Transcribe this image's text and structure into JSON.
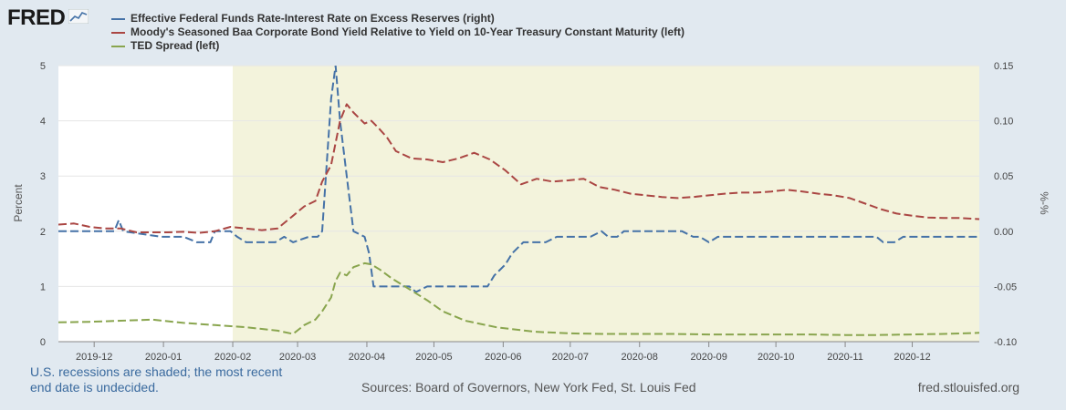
{
  "brand": "FRED",
  "colors": {
    "background": "#e1e9f0",
    "recession": "#f3f3dc",
    "series_iorer": "#4572a7",
    "series_baa": "#aa4643",
    "series_ted": "#89a54e"
  },
  "legend": [
    {
      "label": "Effective Federal Funds Rate-Interest Rate on Excess Reserves (right)",
      "color": "#4572a7"
    },
    {
      "label": "Moody's Seasoned Baa Corporate Bond Yield Relative to Yield on 10-Year Treasury Constant Maturity (left)",
      "color": "#aa4643"
    },
    {
      "label": "TED Spread (left)",
      "color": "#89a54e"
    }
  ],
  "footer": {
    "note_line1": "U.S. recessions are shaded; the most recent",
    "note_line2": "end date is undecided.",
    "sources": "Sources: Board of Governors, New York Fed, St. Louis Fed",
    "site": "fred.stlouisfed.org"
  },
  "chart_data": {
    "type": "line",
    "ylabel_left": "Percent",
    "ylabel_right": "%-%",
    "ylim_left": [
      0,
      5
    ],
    "ylim_right": [
      -0.1,
      0.15
    ],
    "yticks_left": [
      "0",
      "1",
      "2",
      "3",
      "4",
      "5"
    ],
    "yticks_right": [
      "-0.10",
      "-0.05",
      "0.00",
      "0.05",
      "0.10",
      "0.15"
    ],
    "xlim": [
      "2019-11-15",
      "2020-12-31"
    ],
    "xticks": [
      {
        "label": "2019-12",
        "date": "2019-12-01"
      },
      {
        "label": "2020-01",
        "date": "2020-01-01"
      },
      {
        "label": "2020-02",
        "date": "2020-02-01"
      },
      {
        "label": "2020-03",
        "date": "2020-03-01"
      },
      {
        "label": "2020-04",
        "date": "2020-04-01"
      },
      {
        "label": "2020-05",
        "date": "2020-05-01"
      },
      {
        "label": "2020-06",
        "date": "2020-06-01"
      },
      {
        "label": "2020-07",
        "date": "2020-07-01"
      },
      {
        "label": "2020-08",
        "date": "2020-08-01"
      },
      {
        "label": "2020-09",
        "date": "2020-09-01"
      },
      {
        "label": "2020-10",
        "date": "2020-10-01"
      },
      {
        "label": "2020-11",
        "date": "2020-11-01"
      },
      {
        "label": "2020-12",
        "date": "2020-12-01"
      }
    ],
    "recession": {
      "start": "2020-02-01",
      "end": "2020-12-31"
    },
    "grid": true,
    "series": [
      {
        "name": "Effective Federal Funds Rate-Interest Rate on Excess Reserves (right)",
        "axis": "right",
        "color": "#4572a7",
        "points": [
          [
            "2019-11-15",
            0.0
          ],
          [
            "2019-12-10",
            0.0
          ],
          [
            "2019-12-12",
            0.01
          ],
          [
            "2019-12-14",
            0.0
          ],
          [
            "2019-12-31",
            -0.005
          ],
          [
            "2020-01-10",
            -0.005
          ],
          [
            "2020-01-16",
            -0.01
          ],
          [
            "2020-01-22",
            -0.01
          ],
          [
            "2020-01-24",
            0.0
          ],
          [
            "2020-01-31",
            0.0
          ],
          [
            "2020-02-03",
            -0.005
          ],
          [
            "2020-02-07",
            -0.01
          ],
          [
            "2020-02-14",
            -0.01
          ],
          [
            "2020-02-20",
            -0.01
          ],
          [
            "2020-02-24",
            -0.005
          ],
          [
            "2020-02-28",
            -0.01
          ],
          [
            "2020-03-06",
            -0.005
          ],
          [
            "2020-03-10",
            -0.005
          ],
          [
            "2020-03-12",
            0.0
          ],
          [
            "2020-03-16",
            0.12
          ],
          [
            "2020-03-18",
            0.15
          ],
          [
            "2020-03-20",
            0.1
          ],
          [
            "2020-03-23",
            0.05
          ],
          [
            "2020-03-26",
            0.0
          ],
          [
            "2020-03-31",
            -0.005
          ],
          [
            "2020-04-02",
            -0.02
          ],
          [
            "2020-04-04",
            -0.05
          ],
          [
            "2020-04-14",
            -0.05
          ],
          [
            "2020-04-20",
            -0.05
          ],
          [
            "2020-04-23",
            -0.055
          ],
          [
            "2020-04-28",
            -0.05
          ],
          [
            "2020-05-10",
            -0.05
          ],
          [
            "2020-05-25",
            -0.05
          ],
          [
            "2020-05-28",
            -0.04
          ],
          [
            "2020-06-02",
            -0.03
          ],
          [
            "2020-06-05",
            -0.02
          ],
          [
            "2020-06-10",
            -0.01
          ],
          [
            "2020-06-20",
            -0.01
          ],
          [
            "2020-06-25",
            -0.005
          ],
          [
            "2020-07-05",
            -0.005
          ],
          [
            "2020-07-10",
            -0.005
          ],
          [
            "2020-07-15",
            0.0
          ],
          [
            "2020-07-18",
            -0.005
          ],
          [
            "2020-07-22",
            -0.005
          ],
          [
            "2020-07-25",
            0.0
          ],
          [
            "2020-08-20",
            0.0
          ],
          [
            "2020-08-25",
            -0.005
          ],
          [
            "2020-08-28",
            -0.005
          ],
          [
            "2020-09-01",
            -0.01
          ],
          [
            "2020-09-05",
            -0.005
          ],
          [
            "2020-09-30",
            -0.005
          ],
          [
            "2020-10-31",
            -0.005
          ],
          [
            "2020-11-15",
            -0.005
          ],
          [
            "2020-11-18",
            -0.01
          ],
          [
            "2020-11-23",
            -0.01
          ],
          [
            "2020-11-27",
            -0.005
          ],
          [
            "2020-12-31",
            -0.005
          ]
        ]
      },
      {
        "name": "Moody's Seasoned Baa Corporate Bond Yield Relative to Yield on 10-Year Treasury Constant Maturity (left)",
        "axis": "left",
        "color": "#aa4643",
        "points": [
          [
            "2019-11-15",
            2.12
          ],
          [
            "2019-11-22",
            2.14
          ],
          [
            "2019-11-29",
            2.08
          ],
          [
            "2019-12-06",
            2.05
          ],
          [
            "2019-12-13",
            2.05
          ],
          [
            "2019-12-20",
            1.98
          ],
          [
            "2019-12-27",
            1.98
          ],
          [
            "2020-01-03",
            1.98
          ],
          [
            "2020-01-10",
            1.99
          ],
          [
            "2020-01-17",
            1.97
          ],
          [
            "2020-01-24",
            2.0
          ],
          [
            "2020-01-31",
            2.08
          ],
          [
            "2020-02-07",
            2.05
          ],
          [
            "2020-02-14",
            2.02
          ],
          [
            "2020-02-21",
            2.05
          ],
          [
            "2020-02-28",
            2.28
          ],
          [
            "2020-03-04",
            2.45
          ],
          [
            "2020-03-09",
            2.55
          ],
          [
            "2020-03-12",
            2.9
          ],
          [
            "2020-03-16",
            3.2
          ],
          [
            "2020-03-18",
            3.6
          ],
          [
            "2020-03-20",
            4.0
          ],
          [
            "2020-03-23",
            4.3
          ],
          [
            "2020-03-26",
            4.15
          ],
          [
            "2020-03-31",
            3.95
          ],
          [
            "2020-04-03",
            4.0
          ],
          [
            "2020-04-06",
            3.88
          ],
          [
            "2020-04-10",
            3.7
          ],
          [
            "2020-04-14",
            3.45
          ],
          [
            "2020-04-21",
            3.32
          ],
          [
            "2020-04-28",
            3.3
          ],
          [
            "2020-05-05",
            3.25
          ],
          [
            "2020-05-12",
            3.32
          ],
          [
            "2020-05-19",
            3.42
          ],
          [
            "2020-05-26",
            3.3
          ],
          [
            "2020-06-02",
            3.1
          ],
          [
            "2020-06-09",
            2.85
          ],
          [
            "2020-06-16",
            2.95
          ],
          [
            "2020-06-23",
            2.9
          ],
          [
            "2020-06-30",
            2.92
          ],
          [
            "2020-07-07",
            2.95
          ],
          [
            "2020-07-14",
            2.8
          ],
          [
            "2020-07-21",
            2.75
          ],
          [
            "2020-07-28",
            2.68
          ],
          [
            "2020-08-04",
            2.65
          ],
          [
            "2020-08-11",
            2.62
          ],
          [
            "2020-08-18",
            2.6
          ],
          [
            "2020-08-25",
            2.62
          ],
          [
            "2020-09-01",
            2.65
          ],
          [
            "2020-09-08",
            2.68
          ],
          [
            "2020-09-15",
            2.7
          ],
          [
            "2020-09-22",
            2.7
          ],
          [
            "2020-09-29",
            2.72
          ],
          [
            "2020-10-06",
            2.75
          ],
          [
            "2020-10-13",
            2.72
          ],
          [
            "2020-10-20",
            2.68
          ],
          [
            "2020-10-27",
            2.65
          ],
          [
            "2020-11-03",
            2.6
          ],
          [
            "2020-11-10",
            2.5
          ],
          [
            "2020-11-17",
            2.4
          ],
          [
            "2020-11-24",
            2.32
          ],
          [
            "2020-12-01",
            2.28
          ],
          [
            "2020-12-08",
            2.25
          ],
          [
            "2020-12-15",
            2.24
          ],
          [
            "2020-12-22",
            2.24
          ],
          [
            "2020-12-31",
            2.22
          ]
        ]
      },
      {
        "name": "TED Spread (left)",
        "axis": "left",
        "color": "#89a54e",
        "points": [
          [
            "2019-11-15",
            0.35
          ],
          [
            "2019-11-29",
            0.36
          ],
          [
            "2019-12-13",
            0.38
          ],
          [
            "2019-12-27",
            0.4
          ],
          [
            "2020-01-10",
            0.34
          ],
          [
            "2020-01-24",
            0.3
          ],
          [
            "2020-02-07",
            0.26
          ],
          [
            "2020-02-21",
            0.2
          ],
          [
            "2020-02-28",
            0.14
          ],
          [
            "2020-03-04",
            0.3
          ],
          [
            "2020-03-09",
            0.4
          ],
          [
            "2020-03-12",
            0.55
          ],
          [
            "2020-03-16",
            0.8
          ],
          [
            "2020-03-18",
            1.1
          ],
          [
            "2020-03-20",
            1.25
          ],
          [
            "2020-03-23",
            1.2
          ],
          [
            "2020-03-26",
            1.35
          ],
          [
            "2020-03-31",
            1.42
          ],
          [
            "2020-04-03",
            1.4
          ],
          [
            "2020-04-07",
            1.3
          ],
          [
            "2020-04-12",
            1.15
          ],
          [
            "2020-04-20",
            0.95
          ],
          [
            "2020-04-28",
            0.75
          ],
          [
            "2020-05-05",
            0.55
          ],
          [
            "2020-05-15",
            0.38
          ],
          [
            "2020-05-29",
            0.26
          ],
          [
            "2020-06-15",
            0.18
          ],
          [
            "2020-07-01",
            0.15
          ],
          [
            "2020-07-15",
            0.14
          ],
          [
            "2020-08-01",
            0.14
          ],
          [
            "2020-08-15",
            0.14
          ],
          [
            "2020-09-01",
            0.13
          ],
          [
            "2020-09-15",
            0.13
          ],
          [
            "2020-10-01",
            0.13
          ],
          [
            "2020-10-15",
            0.13
          ],
          [
            "2020-11-01",
            0.12
          ],
          [
            "2020-11-15",
            0.12
          ],
          [
            "2020-12-01",
            0.13
          ],
          [
            "2020-12-15",
            0.14
          ],
          [
            "2020-12-31",
            0.16
          ]
        ]
      }
    ]
  }
}
